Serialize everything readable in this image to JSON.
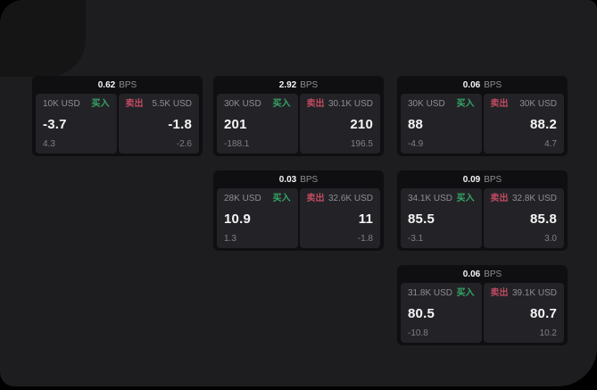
{
  "labels": {
    "bps": "BPS",
    "buy": "买入",
    "sell": "卖出"
  },
  "colors": {
    "background": "#000000",
    "surface": "#1d1d1f",
    "card_background": "#0f0f11",
    "cell_background": "#232327",
    "text_primary": "#f5f5f6",
    "text_muted": "#8e8e93",
    "buy_green": "#36a566",
    "sell_red": "#c04a60"
  },
  "cards": [
    {
      "bps": "0.62",
      "col": 1,
      "row": 1,
      "buy": {
        "size": "10K USD",
        "value": "-3.7",
        "delta": "4.3"
      },
      "sell": {
        "size": "5.5K USD",
        "value": "-1.8",
        "delta": "-2.6"
      }
    },
    {
      "bps": "2.92",
      "col": 2,
      "row": 1,
      "buy": {
        "size": "30K USD",
        "value": "201",
        "delta": "-188.1"
      },
      "sell": {
        "size": "30.1K USD",
        "value": "210",
        "delta": "196.5"
      }
    },
    {
      "bps": "0.06",
      "col": 3,
      "row": 1,
      "buy": {
        "size": "30K USD",
        "value": "88",
        "delta": "-4.9"
      },
      "sell": {
        "size": "30K USD",
        "value": "88.2",
        "delta": "4.7"
      }
    },
    {
      "bps": "0.03",
      "col": 2,
      "row": 2,
      "buy": {
        "size": "28K USD",
        "value": "10.9",
        "delta": "1.3"
      },
      "sell": {
        "size": "32.6K USD",
        "value": "11",
        "delta": "-1.8"
      }
    },
    {
      "bps": "0.09",
      "col": 3,
      "row": 2,
      "buy": {
        "size": "34.1K USD",
        "value": "85.5",
        "delta": "-3.1"
      },
      "sell": {
        "size": "32.8K USD",
        "value": "85.8",
        "delta": "3.0"
      }
    },
    {
      "bps": "0.06",
      "col": 3,
      "row": 3,
      "buy": {
        "size": "31.8K USD",
        "value": "80.5",
        "delta": "-10.8"
      },
      "sell": {
        "size": "39.1K USD",
        "value": "80.7",
        "delta": "10.2"
      }
    }
  ]
}
